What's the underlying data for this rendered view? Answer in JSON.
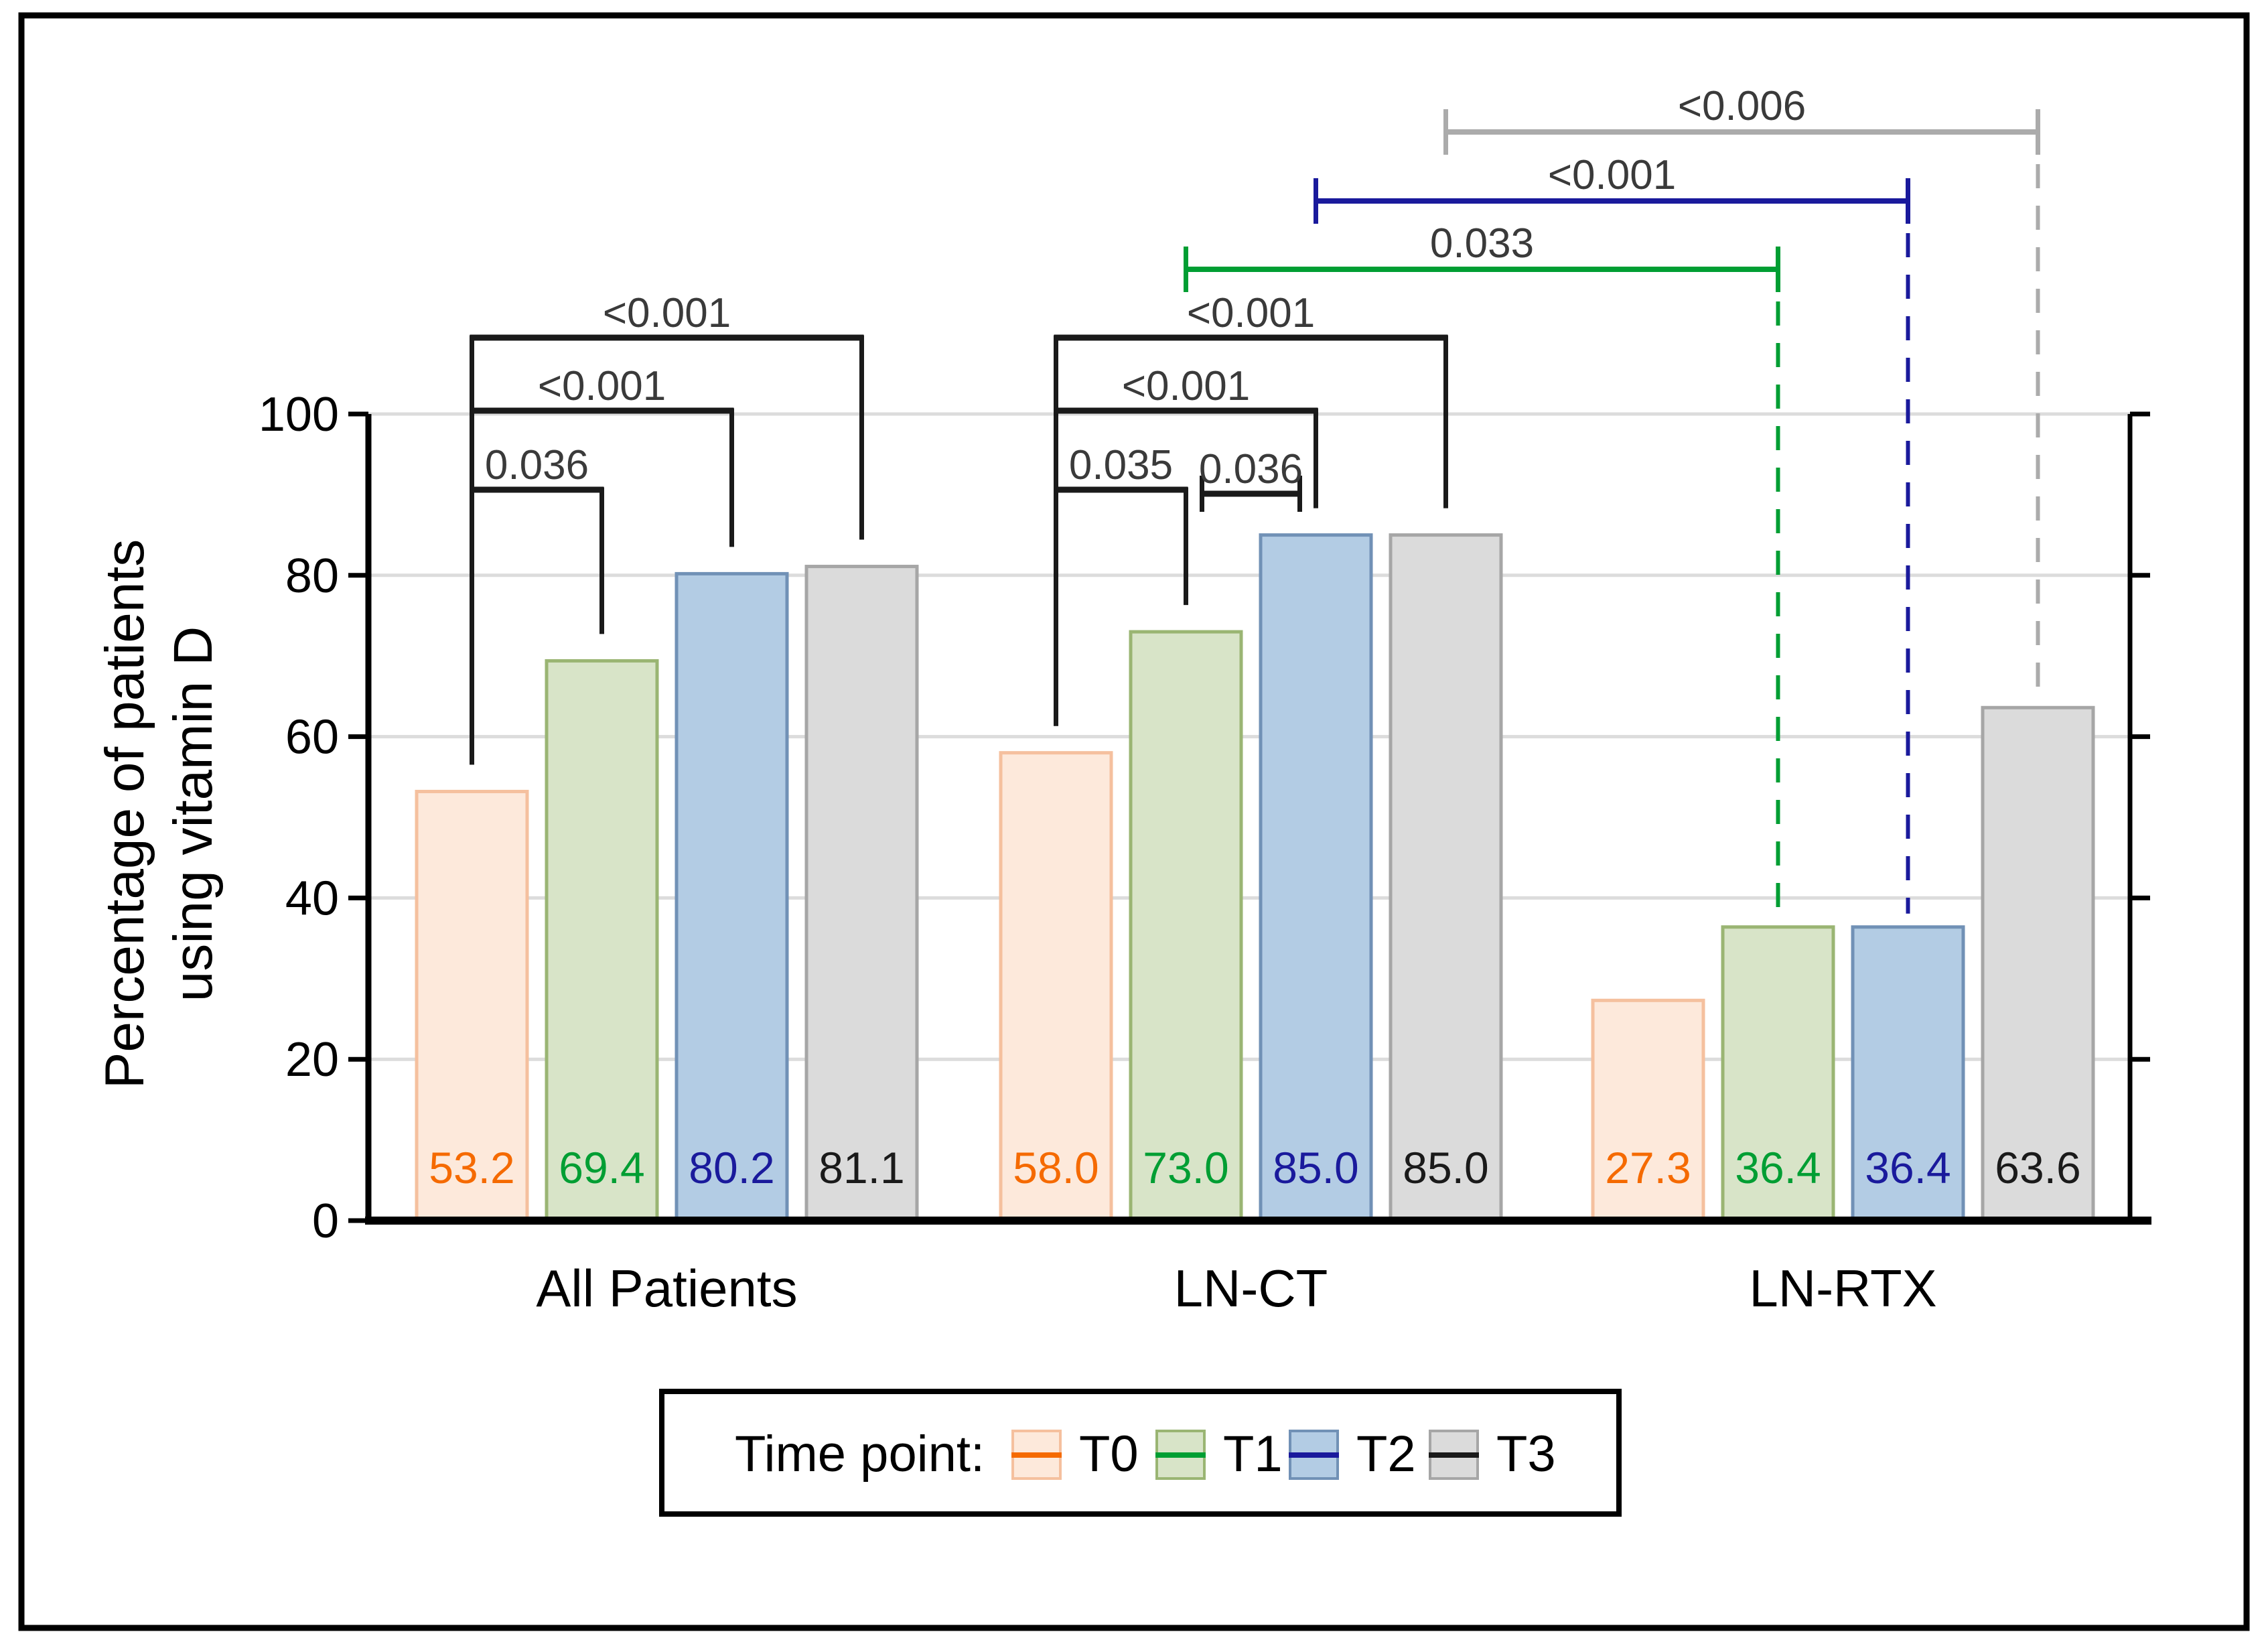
{
  "figure": {
    "background": "#ffffff",
    "border_color": "#000000"
  },
  "chart_data": {
    "type": "bar",
    "title": "",
    "ylabel_lines": [
      "Percentage of patients",
      "using vitamin D"
    ],
    "ylim": [
      0,
      100
    ],
    "yticks": [
      "0",
      "20",
      "40",
      "60",
      "80",
      "100"
    ],
    "grid": true,
    "legend_position": "bottom",
    "categories": [
      "All Patients",
      "LN-CT",
      "LN-RTX"
    ],
    "series": [
      {
        "name": "T0",
        "values": [
          53.2,
          58.0,
          27.3
        ],
        "labels": [
          "53.2",
          "58.0",
          "27.3"
        ],
        "fill": "#FDE9DB",
        "edge": "#F5C09E",
        "accent": "#F56A00"
      },
      {
        "name": "T1",
        "values": [
          69.4,
          73.0,
          36.4
        ],
        "labels": [
          "69.4",
          "73.0",
          "36.4"
        ],
        "fill": "#D8E4C8",
        "edge": "#9AB573",
        "accent": "#009E33"
      },
      {
        "name": "T2",
        "values": [
          80.2,
          85.0,
          36.4
        ],
        "labels": [
          "80.2",
          "85.0",
          "36.4"
        ],
        "fill": "#B3CCE4",
        "edge": "#7191B6",
        "accent": "#1A1A9C"
      },
      {
        "name": "T3",
        "values": [
          81.1,
          85.0,
          63.6
        ],
        "labels": [
          "81.1",
          "85.0",
          "63.6"
        ],
        "fill": "#DBDBDB",
        "edge": "#A6A6A6",
        "accent": "#1A1A1A"
      }
    ],
    "group_brackets": [
      {
        "group": 0,
        "from": 0,
        "to": 3,
        "level": 0,
        "label": "<0.001"
      },
      {
        "group": 0,
        "from": 0,
        "to": 2,
        "level": 1,
        "label": "<0.001"
      },
      {
        "group": 0,
        "from": 0,
        "to": 1,
        "level": 2,
        "label": "0.036"
      },
      {
        "group": 1,
        "from": 0,
        "to": 3,
        "level": 0,
        "label": "<0.001"
      },
      {
        "group": 1,
        "from": 0,
        "to": 2,
        "level": 1,
        "label": "<0.001"
      },
      {
        "group": 1,
        "from": 0,
        "to": 1,
        "level": 2,
        "label": "0.035"
      },
      {
        "group": 1,
        "from": 1,
        "to": 2,
        "level": 2,
        "label": "0.036",
        "style": "tick-both"
      }
    ],
    "cross_brackets": [
      {
        "series": 3,
        "from_group": 1,
        "to_group": 2,
        "label": "<0.006",
        "color": "#ABABAB",
        "level_y": 197
      },
      {
        "series": 2,
        "from_group": 1,
        "to_group": 2,
        "label": "<0.001",
        "color": "#1A1A9C",
        "level_y": 300
      },
      {
        "series": 1,
        "from_group": 1,
        "to_group": 2,
        "label": "0.033",
        "color": "#009E33",
        "level_y": 402
      }
    ],
    "bracket_label_color": "#3A3A3A",
    "grid_color": "#DCDCDC"
  },
  "legend": {
    "title": "Time point:",
    "entries": [
      "T0",
      "T1",
      "T2",
      "T3"
    ]
  }
}
